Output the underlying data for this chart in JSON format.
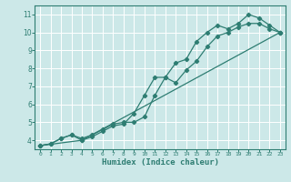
{
  "xlabel": "Humidex (Indice chaleur)",
  "background_color": "#cce8e8",
  "grid_color": "#ffffff",
  "line_color": "#2e7d72",
  "xlim": [
    -0.5,
    23.5
  ],
  "ylim": [
    3.5,
    11.5
  ],
  "xticks": [
    0,
    1,
    2,
    3,
    4,
    5,
    6,
    7,
    8,
    9,
    10,
    11,
    12,
    13,
    14,
    15,
    16,
    17,
    18,
    19,
    20,
    21,
    22,
    23
  ],
  "yticks": [
    4,
    5,
    6,
    7,
    8,
    9,
    10,
    11
  ],
  "line1_x": [
    0,
    1,
    2,
    3,
    4,
    5,
    6,
    7,
    8,
    9,
    10,
    11,
    12,
    13,
    14,
    15,
    16,
    17,
    18,
    19,
    20,
    21,
    22,
    23
  ],
  "line1_y": [
    3.7,
    3.8,
    4.1,
    4.3,
    4.1,
    4.3,
    4.6,
    4.9,
    5.0,
    5.0,
    5.3,
    6.5,
    7.5,
    8.3,
    8.5,
    9.5,
    10.0,
    10.4,
    10.2,
    10.5,
    11.0,
    10.8,
    10.4,
    10.0
  ],
  "line2_x": [
    0,
    1,
    2,
    3,
    4,
    5,
    6,
    7,
    8,
    9,
    10,
    11,
    12,
    13,
    14,
    15,
    16,
    17,
    18,
    19,
    20,
    21,
    22,
    23
  ],
  "line2_y": [
    3.7,
    3.8,
    4.1,
    4.3,
    4.0,
    4.2,
    4.5,
    4.8,
    4.9,
    5.5,
    6.5,
    7.5,
    7.5,
    7.2,
    7.9,
    8.4,
    9.2,
    9.8,
    10.0,
    10.3,
    10.5,
    10.5,
    10.2,
    10.0
  ],
  "line3_x": [
    0,
    4,
    23
  ],
  "line3_y": [
    3.7,
    4.0,
    10.0
  ]
}
